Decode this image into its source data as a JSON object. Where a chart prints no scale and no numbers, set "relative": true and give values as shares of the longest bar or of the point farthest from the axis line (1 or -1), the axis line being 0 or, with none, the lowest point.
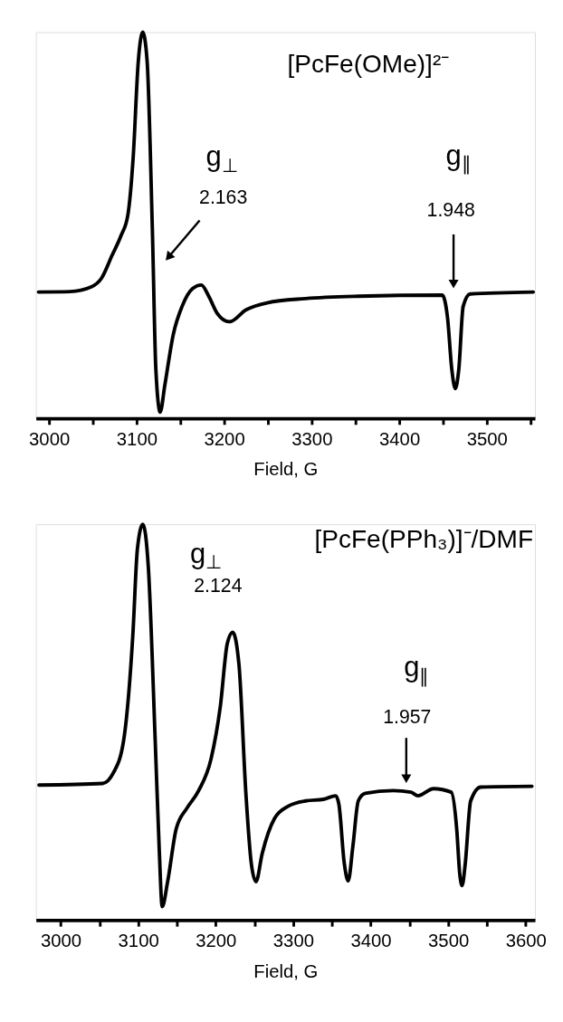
{
  "chart_data": [
    {
      "type": "line",
      "title": "[PcFe(OMe)]²⁻",
      "xlabel": "Field, G",
      "relative": true,
      "grid": false,
      "marker": "none",
      "line_style": "solid",
      "xlim": [
        2985,
        3555
      ],
      "xticks": [
        3000,
        {
          "value": 3050,
          "label": null
        },
        3100,
        {
          "value": 3150,
          "label": null
        },
        3200,
        {
          "value": 3250,
          "label": null
        },
        3300,
        {
          "value": 3350,
          "label": null
        },
        3400,
        {
          "value": 3450,
          "label": null
        },
        3500,
        {
          "value": 3550,
          "label": null
        }
      ],
      "series": [
        {
          "color": "#000000",
          "x": [
            2988,
            3024,
            3048,
            3060,
            3072,
            3082,
            3090,
            3096,
            3102,
            3107,
            3112,
            3118,
            3122,
            3127,
            3132,
            3142,
            3152,
            3164,
            3174,
            3182,
            3192,
            3206,
            3225,
            3249,
            3293,
            3353,
            3449,
            3455,
            3460,
            3464,
            3468,
            3473,
            3481,
            3553
          ],
          "values": [
            0.327,
            0.328,
            0.34,
            0.363,
            0.422,
            0.472,
            0.526,
            0.672,
            0.926,
            1.0,
            0.926,
            0.49,
            0.127,
            0.016,
            0.082,
            0.218,
            0.29,
            0.336,
            0.345,
            0.318,
            0.272,
            0.25,
            0.281,
            0.299,
            0.31,
            0.316,
            0.319,
            0.263,
            0.127,
            0.077,
            0.127,
            0.29,
            0.322,
            0.327
          ]
        }
      ],
      "annotations": [
        "g$_{⊥}$",
        "2.163",
        "g$_{∥}$",
        "1.948"
      ]
    },
    {
      "type": "line",
      "title": "[PcFe(PPh₃)]⁻/DMF",
      "xlabel": "Field, G",
      "relative": true,
      "grid": false,
      "marker": "none",
      "line_style": "solid",
      "xlim": [
        2968,
        3612
      ],
      "xticks": [
        3000,
        {
          "value": 3050,
          "label": null
        },
        3100,
        {
          "value": 3150,
          "label": null
        },
        3200,
        {
          "value": 3250,
          "label": null
        },
        3300,
        {
          "value": 3350,
          "label": null
        },
        3400,
        {
          "value": 3450,
          "label": null
        },
        3500,
        {
          "value": 3550,
          "label": null
        },
        3600
      ],
      "series": [
        {
          "color": "#000000",
          "x": [
            2972,
            3054,
            3068,
            3081,
            3093,
            3099,
            3106,
            3113,
            3122,
            3127,
            3131,
            3138,
            3149,
            3163,
            3178,
            3194,
            3206,
            3215,
            3222,
            3230,
            3239,
            3246,
            3252,
            3260,
            3276,
            3294,
            3316,
            3339,
            3355,
            3359,
            3366,
            3371,
            3377,
            3384,
            3393,
            3429,
            3452,
            3461,
            3481,
            3504,
            3511,
            3515,
            3518,
            3522,
            3529,
            3542,
            3608
          ],
          "values": [
            0.341,
            0.345,
            0.372,
            0.451,
            0.717,
            0.938,
            1.0,
            0.894,
            0.451,
            0.186,
            0.034,
            0.097,
            0.23,
            0.283,
            0.327,
            0.407,
            0.54,
            0.699,
            0.727,
            0.646,
            0.319,
            0.142,
            0.097,
            0.168,
            0.257,
            0.288,
            0.301,
            0.305,
            0.314,
            0.292,
            0.142,
            0.099,
            0.186,
            0.301,
            0.32,
            0.327,
            0.323,
            0.314,
            0.332,
            0.323,
            0.23,
            0.115,
            0.087,
            0.142,
            0.301,
            0.336,
            0.338
          ]
        }
      ],
      "annotations": [
        "g$_{⊥}$",
        "2.124",
        "g$_{∥}$",
        "1.957"
      ]
    }
  ]
}
